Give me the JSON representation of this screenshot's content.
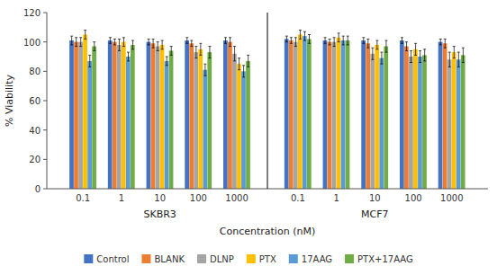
{
  "chart_data": {
    "type": "bar",
    "xlabel": "Concentration (nM)",
    "ylabel": "% Viability",
    "categories": [
      "0.1",
      "1",
      "10",
      "100",
      "1000",
      "0.1",
      "1",
      "10",
      "100",
      "1000"
    ],
    "groups": [
      "SKBR3",
      "MCF7"
    ],
    "ylim": [
      0,
      120
    ],
    "yticks": [
      0,
      20,
      40,
      60,
      80,
      100,
      120
    ],
    "grid": false,
    "legend": "bottom",
    "series": [
      {
        "name": "Control",
        "color": "#4472C4",
        "values": [
          101,
          101,
          100,
          101,
          101,
          102,
          101,
          101,
          101,
          100
        ],
        "errors": [
          3,
          2,
          2,
          2,
          2,
          2,
          2,
          2,
          2,
          2
        ]
      },
      {
        "name": "BLANK",
        "color": "#ED7D31",
        "values": [
          100,
          100,
          99,
          99,
          100,
          101,
          100,
          99,
          97,
          99
        ],
        "errors": [
          3,
          2,
          3,
          2,
          3,
          2,
          2,
          3,
          3,
          3
        ]
      },
      {
        "name": "DLNP",
        "color": "#A5A5A5",
        "values": [
          100,
          98,
          97,
          93,
          92,
          100,
          100,
          92,
          90,
          88
        ],
        "errors": [
          3,
          4,
          3,
          4,
          5,
          3,
          3,
          4,
          4,
          5
        ]
      },
      {
        "name": "PTX",
        "color": "#FFC000",
        "values": [
          105,
          100,
          98,
          95,
          85,
          105,
          103,
          98,
          95,
          93
        ],
        "errors": [
          3,
          3,
          3,
          4,
          4,
          3,
          3,
          3,
          4,
          4
        ]
      },
      {
        "name": "17AAG",
        "color": "#5B9BD5",
        "values": [
          87,
          90,
          87,
          81,
          80,
          104,
          101,
          89,
          90,
          88
        ],
        "errors": [
          4,
          3,
          3,
          4,
          4,
          3,
          3,
          4,
          4,
          5
        ]
      },
      {
        "name": "PTX+17AAG",
        "color": "#70AD47",
        "values": [
          97,
          98,
          94,
          93,
          87,
          102,
          101,
          97,
          91,
          91
        ],
        "errors": [
          3,
          3,
          3,
          4,
          4,
          3,
          3,
          4,
          4,
          5
        ]
      }
    ]
  }
}
